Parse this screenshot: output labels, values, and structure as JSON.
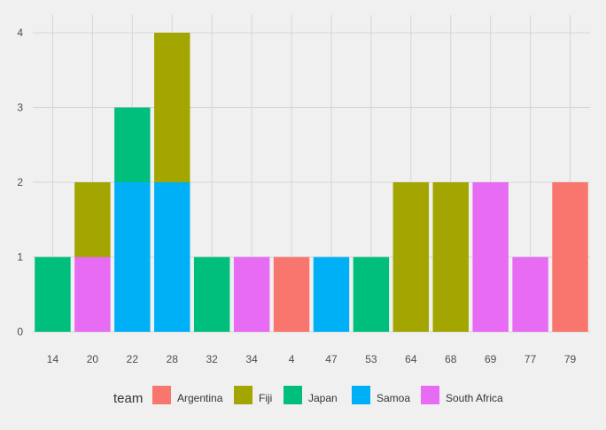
{
  "chart_data": {
    "type": "bar",
    "stacked": true,
    "categories": [
      "14",
      "20",
      "22",
      "28",
      "32",
      "34",
      "4",
      "47",
      "53",
      "64",
      "68",
      "69",
      "77",
      "79"
    ],
    "series": [
      {
        "name": "Argentina",
        "color": "#F8766D",
        "values": [
          0,
          0,
          0,
          0,
          0,
          0,
          1,
          0,
          0,
          0,
          0,
          0,
          0,
          2
        ]
      },
      {
        "name": "Fiji",
        "color": "#A3A500",
        "values": [
          0,
          1,
          0,
          2,
          0,
          0,
          0,
          0,
          0,
          2,
          2,
          0,
          0,
          0
        ]
      },
      {
        "name": "Japan",
        "color": "#00BF7D",
        "values": [
          1,
          0,
          1,
          0,
          1,
          0,
          0,
          0,
          1,
          0,
          0,
          0,
          0,
          0
        ]
      },
      {
        "name": "Samoa",
        "color": "#00B0F6",
        "values": [
          0,
          0,
          2,
          2,
          0,
          0,
          0,
          1,
          0,
          0,
          0,
          0,
          0,
          0
        ]
      },
      {
        "name": "South Africa",
        "color": "#E76BF3",
        "values": [
          0,
          1,
          0,
          0,
          0,
          1,
          0,
          0,
          0,
          0,
          0,
          2,
          1,
          0
        ]
      }
    ],
    "ylim": [
      0,
      4
    ],
    "yticks": [
      0,
      1,
      2,
      3,
      4
    ],
    "xlabel": "",
    "ylabel": "",
    "title": "",
    "grid": true,
    "legend": {
      "title": "team",
      "position": "bottom"
    },
    "background": "#f0f0f0"
  }
}
